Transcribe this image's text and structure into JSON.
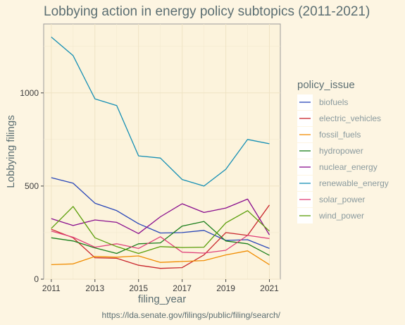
{
  "chart_data": {
    "type": "line",
    "title": "Lobbying action in energy policy subtopics (2011-2021)",
    "xlabel": "filing_year",
    "ylabel": "Lobbying filings",
    "caption": "https://lda.senate.gov/filings/public/filing/search/",
    "legend_title": "policy_issue",
    "legend_position": "right",
    "grid": true,
    "x": [
      2011,
      2012,
      2013,
      2014,
      2015,
      2016,
      2017,
      2018,
      2019,
      2020,
      2021
    ],
    "xticks": [
      2011,
      2013,
      2015,
      2017,
      2019,
      2021
    ],
    "yticks": [
      0,
      500,
      1000
    ],
    "xlim": [
      2010.65,
      2021.5
    ],
    "ylim": [
      0,
      1370
    ],
    "series": [
      {
        "name": "biofuels",
        "color": "#2846b8",
        "values": [
          545,
          515,
          408,
          368,
          298,
          248,
          250,
          262,
          208,
          212,
          165
        ]
      },
      {
        "name": "electric_vehicles",
        "color": "#c9262c",
        "values": [
          268,
          222,
          115,
          112,
          75,
          58,
          62,
          130,
          250,
          235,
          398
        ]
      },
      {
        "name": "fossil_fuels",
        "color": "#f08c00",
        "values": [
          78,
          82,
          122,
          118,
          125,
          90,
          95,
          100,
          130,
          152,
          78
        ]
      },
      {
        "name": "hydropower",
        "color": "#1a7e1a",
        "values": [
          222,
          205,
          168,
          138,
          190,
          195,
          285,
          310,
          205,
          190,
          128
        ]
      },
      {
        "name": "nuclear_energy",
        "color": "#8a0f8e",
        "values": [
          325,
          288,
          318,
          305,
          245,
          335,
          405,
          358,
          382,
          430,
          238
        ]
      },
      {
        "name": "renewable_energy",
        "color": "#158fb4",
        "values": [
          1300,
          1200,
          968,
          932,
          662,
          650,
          535,
          500,
          590,
          750,
          727
        ]
      },
      {
        "name": "solar_power",
        "color": "#e0417a",
        "values": [
          258,
          225,
          172,
          190,
          165,
          228,
          145,
          140,
          155,
          235,
          218
        ]
      },
      {
        "name": "wind_power",
        "color": "#5a9e0a",
        "values": [
          272,
          390,
          222,
          175,
          138,
          175,
          170,
          172,
          302,
          368,
          258
        ]
      }
    ]
  }
}
